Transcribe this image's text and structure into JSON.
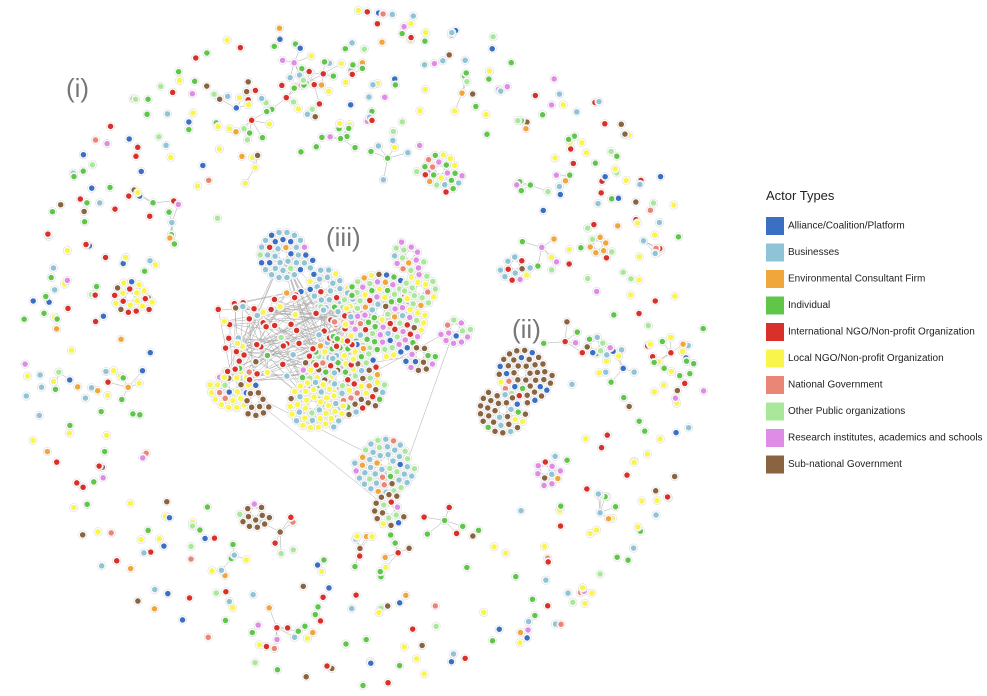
{
  "region_labels": [
    "(i)",
    "(iii)",
    "(ii)"
  ],
  "legend": {
    "title": "Actor Types",
    "items": [
      {
        "label": "Alliance/Coalition/Platform",
        "color": "#3a6fc4"
      },
      {
        "label": "Businesses",
        "color": "#8fc3d6"
      },
      {
        "label": "Environmental Consultant Firm",
        "color": "#f0a63a"
      },
      {
        "label": "Individual",
        "color": "#5fc64a"
      },
      {
        "label": "International NGO/Non-profit Organization",
        "color": "#d9302a"
      },
      {
        "label": "Local NGO/Non-profit Organization",
        "color": "#f9f54a"
      },
      {
        "label": "National Government",
        "color": "#e98676"
      },
      {
        "label": "Other Public organizations",
        "color": "#a9e89a"
      },
      {
        "label": "Research institutes, academics and schools",
        "color": "#df8ce6"
      },
      {
        "label": "Sub-national Government",
        "color": "#8a6440"
      }
    ]
  }
}
